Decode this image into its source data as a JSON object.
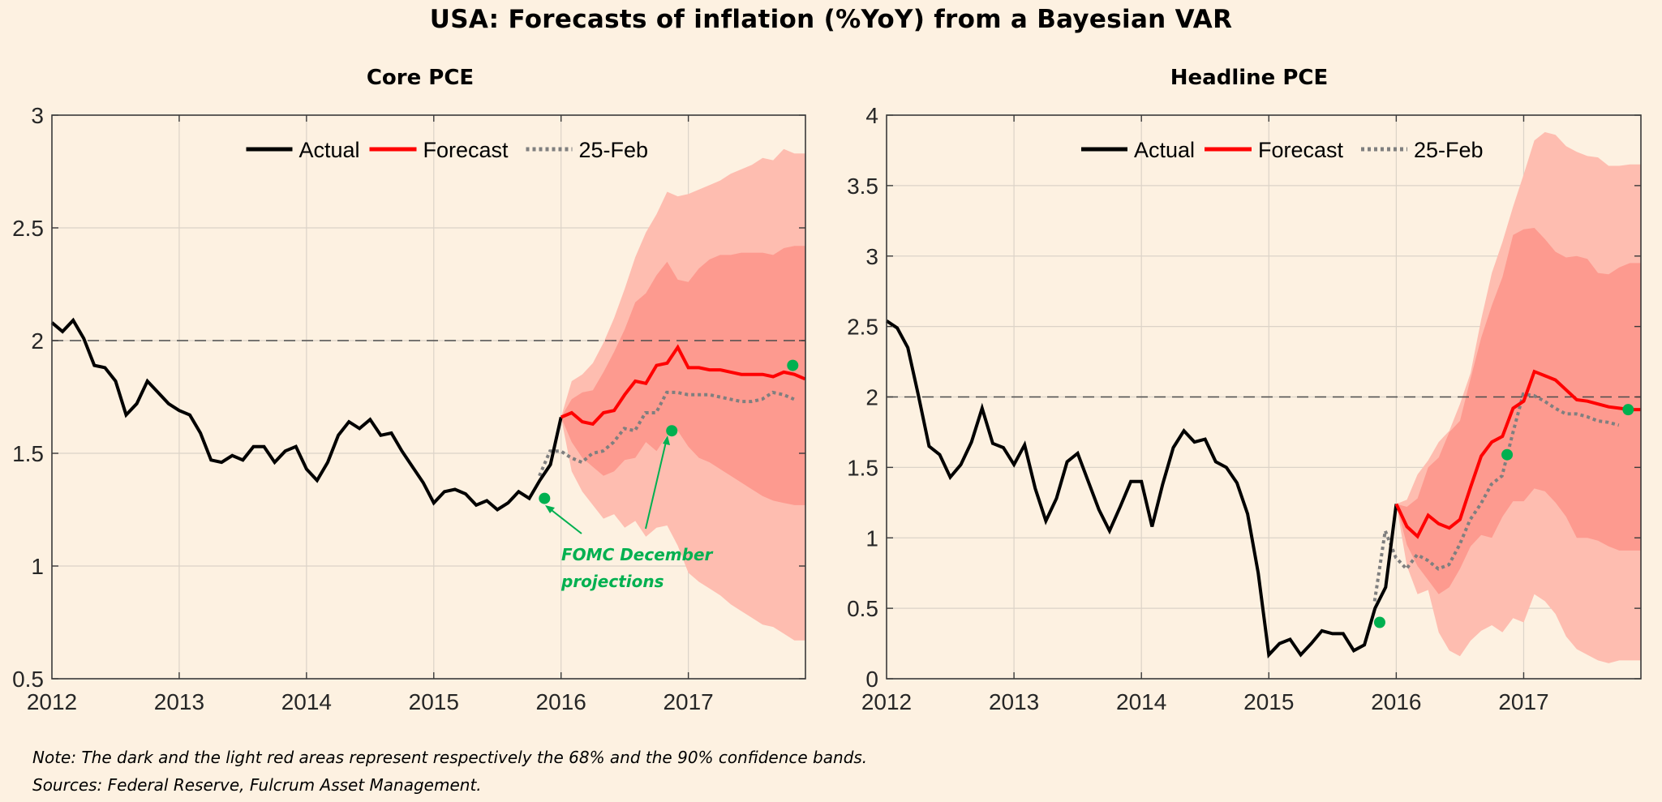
{
  "title": "USA: Forecasts of inflation (%YoY) from a Bayesian VAR",
  "note": "Note: The dark and the light red areas represent respectively the 68% and the 90% confidence bands.",
  "sources": "Sources: Federal Reserve, Fulcrum Asset Management.",
  "colors": {
    "background": "#fdf1e1",
    "actual": "#000000",
    "forecast": "#ff0000",
    "feb": "#7f7f7f",
    "band68": "#fd9a8f",
    "band90": "#febdb0",
    "fomc": "#00b050",
    "grid": "#dcd3c8",
    "target": "#4d4d4d"
  },
  "chart_data": [
    {
      "type": "line",
      "title": "Core PCE",
      "xlabel": "",
      "ylabel": "",
      "xlim": [
        2012,
        2017.92
      ],
      "ylim": [
        0.5,
        3
      ],
      "x_ticks": [
        "2012",
        "2013",
        "2014",
        "2015",
        "2016",
        "2017"
      ],
      "y_ticks": [
        "0.5",
        "1",
        "1.5",
        "2",
        "2.5",
        "3"
      ],
      "y_tick_values": [
        0.5,
        1,
        1.5,
        2,
        2.5,
        3
      ],
      "grid": true,
      "legend": [
        "Actual",
        "Forecast",
        "25-Feb"
      ],
      "legend_position": "top-center",
      "reference_line": 2,
      "annotation": "FOMC December projections",
      "actual": {
        "start": 2012.0,
        "step_months": 1,
        "values": [
          2.08,
          2.04,
          2.09,
          2.01,
          1.89,
          1.88,
          1.82,
          1.67,
          1.72,
          1.82,
          1.77,
          1.72,
          1.69,
          1.67,
          1.59,
          1.47,
          1.46,
          1.49,
          1.47,
          1.53,
          1.53,
          1.46,
          1.51,
          1.53,
          1.43,
          1.38,
          1.46,
          1.58,
          1.64,
          1.61,
          1.65,
          1.58,
          1.59,
          1.51,
          1.44,
          1.37,
          1.28,
          1.33,
          1.34,
          1.32,
          1.27,
          1.29,
          1.25,
          1.28,
          1.33,
          1.3,
          1.38,
          1.45,
          1.66
        ]
      },
      "forecast": {
        "start": 2016.0,
        "values": [
          1.66,
          1.68,
          1.64,
          1.63,
          1.68,
          1.69,
          1.76,
          1.82,
          1.81,
          1.89,
          1.9,
          1.97,
          1.88,
          1.88,
          1.87,
          1.87,
          1.86,
          1.85,
          1.85,
          1.85,
          1.84,
          1.86,
          1.85,
          1.83
        ]
      },
      "feb": {
        "start": 2015.83,
        "values": [
          1.4,
          1.51,
          1.51,
          1.48,
          1.46,
          1.5,
          1.51,
          1.55,
          1.61,
          1.6,
          1.68,
          1.68,
          1.77,
          1.77,
          1.76,
          1.76,
          1.76,
          1.75,
          1.74,
          1.73,
          1.73,
          1.74,
          1.77,
          1.76,
          1.74
        ]
      },
      "bands": {
        "start": 2016.0,
        "upper90": [
          1.66,
          1.82,
          1.85,
          1.9,
          1.99,
          2.1,
          2.23,
          2.37,
          2.48,
          2.56,
          2.66,
          2.64,
          2.65,
          2.67,
          2.69,
          2.71,
          2.74,
          2.76,
          2.78,
          2.81,
          2.8,
          2.85,
          2.83
        ],
        "upper68": [
          1.66,
          1.74,
          1.77,
          1.78,
          1.86,
          1.95,
          2.05,
          2.17,
          2.21,
          2.29,
          2.35,
          2.27,
          2.26,
          2.32,
          2.36,
          2.38,
          2.38,
          2.39,
          2.39,
          2.39,
          2.38,
          2.41,
          2.42
        ],
        "lower68": [
          1.66,
          1.55,
          1.48,
          1.44,
          1.4,
          1.42,
          1.47,
          1.48,
          1.55,
          1.51,
          1.58,
          1.6,
          1.53,
          1.48,
          1.46,
          1.43,
          1.4,
          1.37,
          1.34,
          1.31,
          1.29,
          1.28,
          1.27
        ],
        "lower90": [
          1.66,
          1.42,
          1.33,
          1.27,
          1.21,
          1.23,
          1.17,
          1.2,
          1.13,
          1.17,
          1.18,
          1.09,
          0.97,
          0.93,
          0.9,
          0.87,
          0.83,
          0.8,
          0.77,
          0.74,
          0.73,
          0.7,
          0.67
        ]
      },
      "fomc_points": [
        [
          2015.87,
          1.3
        ],
        [
          2016.87,
          1.6
        ],
        [
          2017.82,
          1.89
        ]
      ]
    },
    {
      "type": "line",
      "title": "Headline PCE",
      "xlabel": "",
      "ylabel": "",
      "xlim": [
        2012,
        2017.92
      ],
      "ylim": [
        0,
        4
      ],
      "x_ticks": [
        "2012",
        "2013",
        "2014",
        "2015",
        "2016",
        "2017"
      ],
      "y_ticks": [
        "0",
        "0.5",
        "1",
        "1.5",
        "2",
        "2.5",
        "3",
        "3.5",
        "4"
      ],
      "y_tick_values": [
        0,
        0.5,
        1,
        1.5,
        2,
        2.5,
        3,
        3.5,
        4
      ],
      "grid": true,
      "legend": [
        "Actual",
        "Forecast",
        "25-Feb"
      ],
      "legend_position": "top-center",
      "reference_line": 2,
      "actual": {
        "start": 2012.0,
        "step_months": 1,
        "values": [
          2.54,
          2.49,
          2.35,
          2.01,
          1.65,
          1.59,
          1.43,
          1.52,
          1.68,
          1.92,
          1.67,
          1.64,
          1.52,
          1.66,
          1.35,
          1.12,
          1.28,
          1.54,
          1.6,
          1.4,
          1.2,
          1.05,
          1.22,
          1.4,
          1.4,
          1.08,
          1.38,
          1.64,
          1.76,
          1.68,
          1.7,
          1.54,
          1.5,
          1.39,
          1.17,
          0.75,
          0.17,
          0.25,
          0.28,
          0.17,
          0.25,
          0.34,
          0.32,
          0.32,
          0.2,
          0.24,
          0.5,
          0.65,
          1.24
        ]
      },
      "forecast": {
        "start": 2016.0,
        "values": [
          1.24,
          1.08,
          1.01,
          1.16,
          1.1,
          1.07,
          1.13,
          1.36,
          1.58,
          1.68,
          1.72,
          1.92,
          1.97,
          2.18,
          2.15,
          2.12,
          2.05,
          1.98,
          1.97,
          1.95,
          1.93,
          1.92,
          1.91,
          1.91
        ]
      },
      "feb": {
        "start": 2015.83,
        "values": [
          0.55,
          1.05,
          0.86,
          0.78,
          0.88,
          0.84,
          0.78,
          0.81,
          0.95,
          1.13,
          1.24,
          1.38,
          1.44,
          1.74,
          2.02,
          2.01,
          1.97,
          1.92,
          1.88,
          1.88,
          1.86,
          1.83,
          1.82,
          1.8
        ]
      },
      "bands": {
        "start": 2016.0,
        "upper90": [
          1.24,
          1.27,
          1.45,
          1.55,
          1.68,
          1.76,
          1.95,
          2.17,
          2.55,
          2.88,
          3.1,
          3.35,
          3.58,
          3.82,
          3.88,
          3.86,
          3.78,
          3.74,
          3.71,
          3.7,
          3.64,
          3.64,
          3.65
        ],
        "upper68": [
          1.24,
          1.22,
          1.28,
          1.5,
          1.57,
          1.75,
          1.83,
          2.13,
          2.42,
          2.65,
          2.85,
          3.15,
          3.19,
          3.2,
          3.12,
          3.03,
          2.99,
          3.0,
          2.98,
          2.88,
          2.87,
          2.92,
          2.95
        ],
        "lower68": [
          1.24,
          0.95,
          0.8,
          0.7,
          0.6,
          0.65,
          0.78,
          0.94,
          1.02,
          1.0,
          1.15,
          1.26,
          1.26,
          1.35,
          1.33,
          1.25,
          1.15,
          1.0,
          1.0,
          0.98,
          0.94,
          0.91,
          0.91
        ],
        "lower90": [
          1.24,
          0.8,
          0.6,
          0.63,
          0.33,
          0.2,
          0.16,
          0.27,
          0.34,
          0.38,
          0.33,
          0.43,
          0.4,
          0.6,
          0.55,
          0.46,
          0.3,
          0.21,
          0.17,
          0.13,
          0.11,
          0.13,
          0.13
        ]
      },
      "fomc_points": [
        [
          2015.87,
          0.4
        ],
        [
          2016.87,
          1.59
        ],
        [
          2017.82,
          1.91
        ]
      ]
    }
  ]
}
